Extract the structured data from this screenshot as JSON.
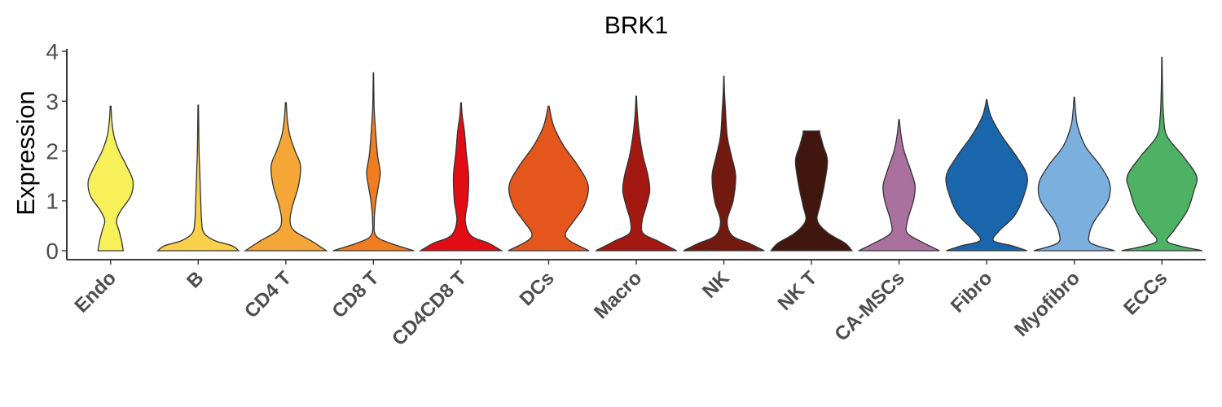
{
  "chart_data": {
    "type": "violin",
    "title": "BRK1",
    "xlabel": "",
    "ylabel": "Expression",
    "ylim": [
      -0.18,
      4.05
    ],
    "yticks": [
      "0",
      "1",
      "2",
      "3",
      "4"
    ],
    "grid": false,
    "legend": "none",
    "categories": [
      "Endo",
      "B",
      "CD4 T",
      "CD8 T",
      "CD4CD8 T",
      "DCs",
      "Macro",
      "NK",
      "NK T",
      "CA-MSCs",
      "Fibro",
      "Myofibro",
      "ECCs"
    ],
    "colors": [
      "#F7F059",
      "#FAD04A",
      "#F4A636",
      "#F07E20",
      "#E20C14",
      "#E4561C",
      "#A31911",
      "#731A10",
      "#41160F",
      "#AA709E",
      "#1A66AC",
      "#7AAFDE",
      "#4DB264"
    ],
    "series": [
      {
        "category": "Endo",
        "max": 2.9,
        "density": [
          [
            0,
            0.15
          ],
          [
            0.2,
            0.13
          ],
          [
            0.4,
            0.1
          ],
          [
            0.6,
            0.07
          ],
          [
            0.8,
            0.12
          ],
          [
            1.1,
            0.24
          ],
          [
            1.4,
            0.265
          ],
          [
            1.7,
            0.19
          ],
          [
            2.0,
            0.1
          ],
          [
            2.3,
            0.04
          ],
          [
            2.6,
            0.015
          ],
          [
            2.9,
            0.005
          ]
        ]
      },
      {
        "category": "B",
        "max": 2.92,
        "density": [
          [
            0,
            0.48
          ],
          [
            0.1,
            0.4
          ],
          [
            0.2,
            0.2
          ],
          [
            0.35,
            0.07
          ],
          [
            0.6,
            0.04
          ],
          [
            1.0,
            0.03
          ],
          [
            1.5,
            0.02
          ],
          [
            2.0,
            0.01
          ],
          [
            2.5,
            0.006
          ],
          [
            2.92,
            0.003
          ]
        ]
      },
      {
        "category": "CD4 T",
        "max": 2.97,
        "density": [
          [
            0,
            0.48
          ],
          [
            0.2,
            0.3
          ],
          [
            0.4,
            0.1
          ],
          [
            0.6,
            0.05
          ],
          [
            0.9,
            0.08
          ],
          [
            1.3,
            0.15
          ],
          [
            1.7,
            0.175
          ],
          [
            2.0,
            0.11
          ],
          [
            2.3,
            0.05
          ],
          [
            2.6,
            0.02
          ],
          [
            2.97,
            0.005
          ]
        ]
      },
      {
        "category": "CD8 T",
        "max": 3.57,
        "density": [
          [
            0,
            0.48
          ],
          [
            0.15,
            0.2
          ],
          [
            0.3,
            0.03
          ],
          [
            0.6,
            0.01
          ],
          [
            1.0,
            0.03
          ],
          [
            1.4,
            0.07
          ],
          [
            1.6,
            0.08
          ],
          [
            1.9,
            0.05
          ],
          [
            2.3,
            0.03
          ],
          [
            2.8,
            0.01
          ],
          [
            3.2,
            0.005
          ],
          [
            3.57,
            0.002
          ]
        ]
      },
      {
        "category": "CD4CD8 T",
        "max": 2.97,
        "density": [
          [
            0,
            0.48
          ],
          [
            0.15,
            0.33
          ],
          [
            0.3,
            0.12
          ],
          [
            0.6,
            0.05
          ],
          [
            1.0,
            0.08
          ],
          [
            1.5,
            0.09
          ],
          [
            2.0,
            0.06
          ],
          [
            2.4,
            0.04
          ],
          [
            2.7,
            0.015
          ],
          [
            2.97,
            0.003
          ]
        ]
      },
      {
        "category": "DCs",
        "max": 2.9,
        "density": [
          [
            0,
            0.48
          ],
          [
            0.2,
            0.25
          ],
          [
            0.35,
            0.2
          ],
          [
            0.6,
            0.3
          ],
          [
            0.9,
            0.42
          ],
          [
            1.3,
            0.47
          ],
          [
            1.7,
            0.35
          ],
          [
            2.1,
            0.18
          ],
          [
            2.5,
            0.06
          ],
          [
            2.9,
            0.005
          ]
        ]
      },
      {
        "category": "Macro",
        "max": 3.1,
        "density": [
          [
            0,
            0.48
          ],
          [
            0.2,
            0.25
          ],
          [
            0.35,
            0.08
          ],
          [
            0.6,
            0.07
          ],
          [
            0.9,
            0.12
          ],
          [
            1.2,
            0.16
          ],
          [
            1.5,
            0.14
          ],
          [
            1.9,
            0.08
          ],
          [
            2.3,
            0.04
          ],
          [
            2.7,
            0.015
          ],
          [
            3.1,
            0.003
          ]
        ]
      },
      {
        "category": "NK",
        "max": 3.5,
        "density": [
          [
            0,
            0.48
          ],
          [
            0.15,
            0.3
          ],
          [
            0.3,
            0.1
          ],
          [
            0.6,
            0.04
          ],
          [
            1.0,
            0.11
          ],
          [
            1.5,
            0.14
          ],
          [
            1.9,
            0.09
          ],
          [
            2.3,
            0.04
          ],
          [
            2.8,
            0.02
          ],
          [
            3.2,
            0.007
          ],
          [
            3.5,
            0.002
          ]
        ]
      },
      {
        "category": "NK T",
        "max": 2.4,
        "density": [
          [
            0,
            0.48
          ],
          [
            0.15,
            0.4
          ],
          [
            0.35,
            0.2
          ],
          [
            0.6,
            0.07
          ],
          [
            0.9,
            0.1
          ],
          [
            1.3,
            0.15
          ],
          [
            1.8,
            0.19
          ],
          [
            2.1,
            0.14
          ],
          [
            2.35,
            0.1
          ],
          [
            2.4,
            0.1
          ]
        ]
      },
      {
        "category": "CA-MSCs",
        "max": 2.63,
        "density": [
          [
            0,
            0.48
          ],
          [
            0.15,
            0.3
          ],
          [
            0.35,
            0.1
          ],
          [
            0.6,
            0.1
          ],
          [
            1.0,
            0.17
          ],
          [
            1.3,
            0.19
          ],
          [
            1.6,
            0.14
          ],
          [
            2.0,
            0.06
          ],
          [
            2.3,
            0.025
          ],
          [
            2.63,
            0.003
          ]
        ]
      },
      {
        "category": "Fibro",
        "max": 3.03,
        "density": [
          [
            0,
            0.48
          ],
          [
            0.1,
            0.3
          ],
          [
            0.2,
            0.08
          ],
          [
            0.4,
            0.15
          ],
          [
            0.7,
            0.33
          ],
          [
            1.1,
            0.44
          ],
          [
            1.5,
            0.48
          ],
          [
            1.9,
            0.35
          ],
          [
            2.3,
            0.18
          ],
          [
            2.7,
            0.05
          ],
          [
            3.03,
            0.003
          ]
        ]
      },
      {
        "category": "Myofibro",
        "max": 3.08,
        "density": [
          [
            0,
            0.48
          ],
          [
            0.15,
            0.2
          ],
          [
            0.35,
            0.18
          ],
          [
            0.6,
            0.24
          ],
          [
            1.0,
            0.4
          ],
          [
            1.35,
            0.42
          ],
          [
            1.7,
            0.31
          ],
          [
            2.1,
            0.13
          ],
          [
            2.5,
            0.04
          ],
          [
            2.8,
            0.015
          ],
          [
            3.08,
            0.003
          ]
        ]
      },
      {
        "category": "ECCs",
        "max": 3.88,
        "density": [
          [
            0,
            0.48
          ],
          [
            0.1,
            0.2
          ],
          [
            0.2,
            0.06
          ],
          [
            0.4,
            0.14
          ],
          [
            0.8,
            0.3
          ],
          [
            1.2,
            0.38
          ],
          [
            1.5,
            0.41
          ],
          [
            1.9,
            0.25
          ],
          [
            2.3,
            0.06
          ],
          [
            2.7,
            0.02
          ],
          [
            3.2,
            0.008
          ],
          [
            3.6,
            0.004
          ],
          [
            3.88,
            0.002
          ]
        ]
      }
    ]
  }
}
